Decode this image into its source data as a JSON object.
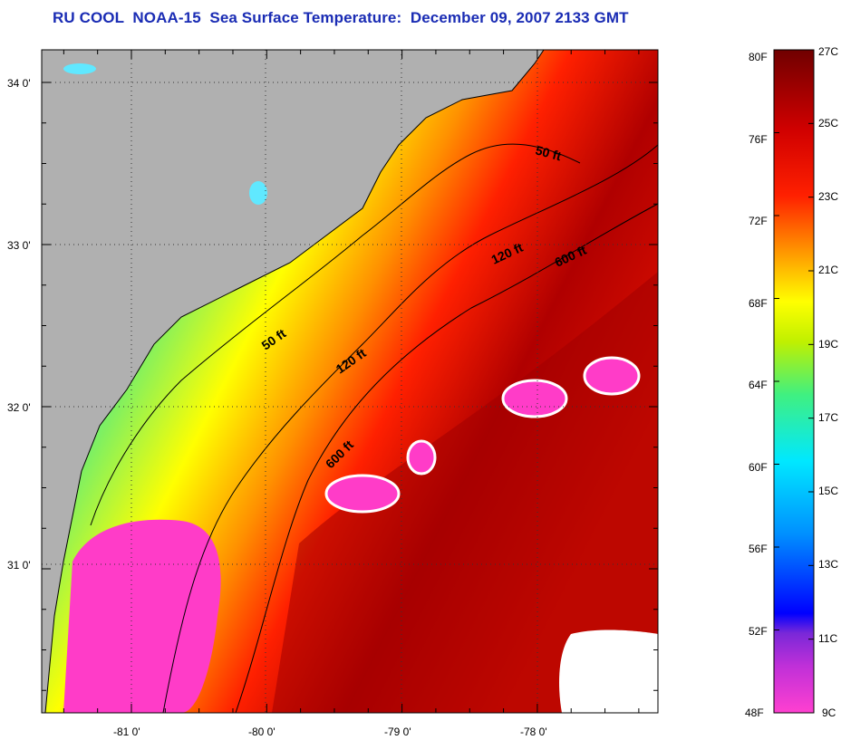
{
  "title": "RU COOL  NOAA-15  Sea Surface Temperature:  December 09, 2007 2133 GMT",
  "map": {
    "lat_ticks": [
      {
        "value": 34,
        "label": "34 0'"
      },
      {
        "value": 33,
        "label": "33 0'"
      },
      {
        "value": 32,
        "label": "32 0'"
      },
      {
        "value": 31,
        "label": "31 0'"
      }
    ],
    "lon_ticks": [
      {
        "value": -81,
        "label": "-81 0'"
      },
      {
        "value": -80,
        "label": "-80 0'"
      },
      {
        "value": -79,
        "label": "-79 0'"
      },
      {
        "value": -78,
        "label": "-78 0'"
      }
    ],
    "isobath_labels": [
      "50 ft",
      "120 ft",
      "600 ft",
      "50 ft",
      "120 ft",
      "600 ft"
    ],
    "colors": {
      "land": "#b0b0b0",
      "cloud": "#ffffff",
      "cold_mask": "#ff3cc8"
    }
  },
  "colorbar": {
    "fahrenheit_labels": [
      "80F",
      "76F",
      "72F",
      "68F",
      "64F",
      "60F",
      "56F",
      "52F",
      "48F"
    ],
    "celsius_labels": [
      "27C",
      "25C",
      "23C",
      "21C",
      "19C",
      "17C",
      "15C",
      "13C",
      "11C",
      "9C"
    ],
    "colors": [
      "#ff40d0",
      "#7a28d8",
      "#0000ff",
      "#0090ff",
      "#00e8ff",
      "#40f080",
      "#c0f000",
      "#ffff00",
      "#ff9000",
      "#ff2000",
      "#d00000",
      "#700000"
    ]
  }
}
